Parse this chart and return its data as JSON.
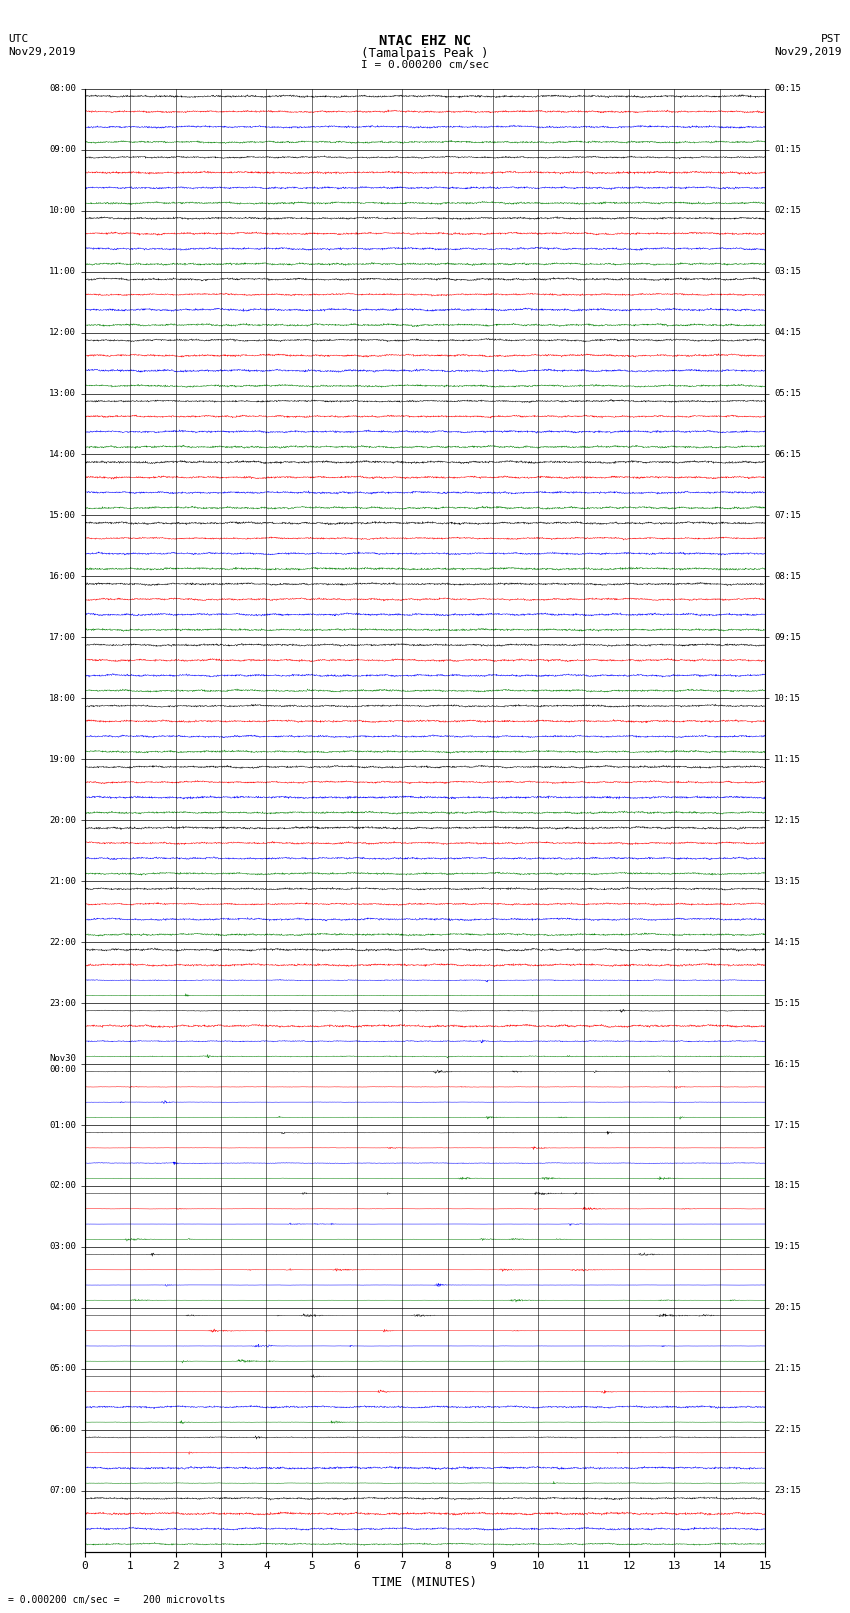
{
  "title_line1": "NTAC EHZ NC",
  "title_line2": "(Tamalpais Peak )",
  "scale_label": "I = 0.000200 cm/sec",
  "bottom_label": "= 0.000200 cm/sec =    200 microvolts",
  "left_header_line1": "UTC",
  "left_header_line2": "Nov29,2019",
  "right_header_line1": "PST",
  "right_header_line2": "Nov29,2019",
  "xlabel": "TIME (MINUTES)",
  "num_rows": 24,
  "traces_per_row": 4,
  "minutes_per_row": 15,
  "colors": [
    "black",
    "red",
    "blue",
    "green"
  ],
  "left_times": [
    "08:00",
    "09:00",
    "10:00",
    "11:00",
    "12:00",
    "13:00",
    "14:00",
    "15:00",
    "16:00",
    "17:00",
    "18:00",
    "19:00",
    "20:00",
    "21:00",
    "22:00",
    "23:00",
    "Nov30\n00:00",
    "01:00",
    "02:00",
    "03:00",
    "04:00",
    "05:00",
    "06:00",
    "07:00"
  ],
  "right_times": [
    "00:15",
    "01:15",
    "02:15",
    "03:15",
    "04:15",
    "05:15",
    "06:15",
    "07:15",
    "08:15",
    "09:15",
    "10:15",
    "11:15",
    "12:15",
    "13:15",
    "14:15",
    "15:15",
    "16:15",
    "17:15",
    "18:15",
    "19:15",
    "20:15",
    "21:15",
    "22:15",
    "23:15"
  ],
  "bg_color": "#ffffff",
  "grid_color": "#888888",
  "seed": 42,
  "activity_levels": [
    0.3,
    0.3,
    0.3,
    0.3,
    0.3,
    0.3,
    0.3,
    0.3,
    0.4,
    0.4,
    0.4,
    0.4,
    0.4,
    0.4,
    0.6,
    0.7,
    1.2,
    1.5,
    1.8,
    2.2,
    2.5,
    1.5,
    0.8,
    0.5
  ]
}
